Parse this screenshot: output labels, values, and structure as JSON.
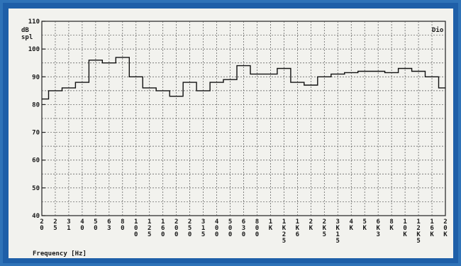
{
  "chart_data": {
    "type": "line",
    "ylabel": "dB\nspl",
    "xlabel": "Frequency [Hz]",
    "corner_label": "Dio",
    "ylim": [
      40,
      110
    ],
    "y_ticks": [
      "40",
      "50",
      "60",
      "70",
      "80",
      "90",
      "100",
      "110"
    ],
    "categories": [
      "20",
      "25",
      "31",
      "40",
      "50",
      "63",
      "80",
      "100",
      "125",
      "160",
      "200",
      "250",
      "315",
      "400",
      "500",
      "630",
      "800",
      "1K",
      "1K25",
      "1K6",
      "2K",
      "2K5",
      "3K15",
      "4K",
      "5K",
      "6K3",
      "8K",
      "10K",
      "12K5",
      "16K",
      "20K"
    ],
    "category_labels": [
      [
        "2",
        "0"
      ],
      [
        "2",
        "5"
      ],
      [
        "3",
        "1"
      ],
      [
        "4",
        "0"
      ],
      [
        "5",
        "0"
      ],
      [
        "6",
        "3"
      ],
      [
        "8",
        "0"
      ],
      [
        "1",
        "0",
        "0"
      ],
      [
        "1",
        "2",
        "5"
      ],
      [
        "1",
        "6",
        "0"
      ],
      [
        "2",
        "0",
        "0"
      ],
      [
        "2",
        "5",
        "0"
      ],
      [
        "3",
        "1",
        "5"
      ],
      [
        "4",
        "0",
        "0"
      ],
      [
        "5",
        "0",
        "0"
      ],
      [
        "6",
        "3",
        "0"
      ],
      [
        "8",
        "0",
        "0"
      ],
      [
        "1",
        "K"
      ],
      [
        "1",
        "K",
        "2",
        "5"
      ],
      [
        "1",
        "K",
        "6"
      ],
      [
        "2",
        "K"
      ],
      [
        "2",
        "K",
        "5"
      ],
      [
        "3",
        "K",
        "1",
        "5"
      ],
      [
        "4",
        "K"
      ],
      [
        "5",
        "K"
      ],
      [
        "6",
        "K",
        "3"
      ],
      [
        "8",
        "K"
      ],
      [
        "1",
        "0",
        "K"
      ],
      [
        "1",
        "2",
        "K",
        "5"
      ],
      [
        "1",
        "6",
        "K"
      ],
      [
        "2",
        "0",
        "K"
      ]
    ],
    "values": [
      82,
      85,
      86,
      88,
      96,
      95,
      97,
      90,
      86,
      85,
      83,
      88,
      85,
      88,
      89,
      94,
      91,
      91,
      93,
      88,
      87,
      90,
      91,
      91.5,
      92,
      92,
      91.5,
      93,
      92,
      90,
      86
    ],
    "grid": true
  }
}
